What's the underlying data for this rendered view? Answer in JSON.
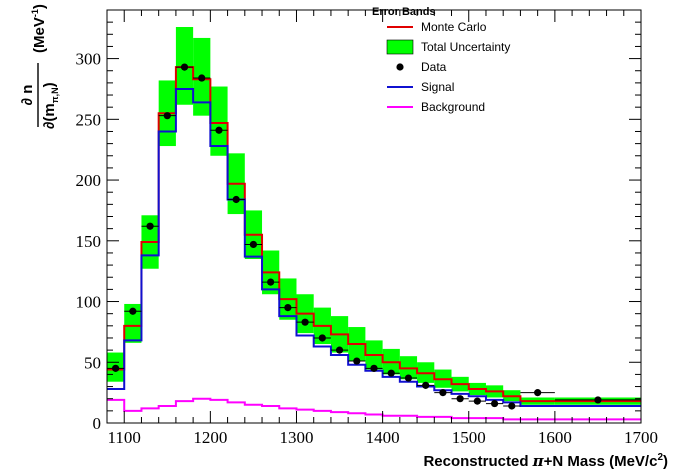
{
  "chart_data": {
    "type": "histogram",
    "xlabel_parts": [
      "Reconstructed ",
      "π",
      "+N Mass (MeV/c",
      "2",
      ")"
    ],
    "ylabel": {
      "numerator": "∂ n",
      "denominator": "∂(m",
      "denominator_sub": "π,N",
      "denominator_close": ")",
      "unit": "(MeV",
      "unit_exp": "-1",
      "unit_close": ")"
    },
    "xlim": [
      1080,
      1700
    ],
    "ylim": [
      0,
      340
    ],
    "x_ticks": [
      1100,
      1200,
      1300,
      1400,
      1500,
      1600,
      1700
    ],
    "y_ticks": [
      0,
      50,
      100,
      150,
      200,
      250,
      300
    ],
    "bin_edges": [
      1080,
      1100,
      1120,
      1140,
      1160,
      1180,
      1200,
      1220,
      1240,
      1260,
      1280,
      1300,
      1320,
      1340,
      1360,
      1380,
      1400,
      1420,
      1440,
      1460,
      1480,
      1500,
      1520,
      1540,
      1560,
      1600,
      1700
    ],
    "legend": {
      "title": "Error Bands",
      "position": "top-right",
      "entries": [
        "Monte Carlo",
        "Total Uncertainty",
        "Data",
        "Signal",
        "Background"
      ]
    },
    "series": [
      {
        "name": "Monte Carlo",
        "kind": "step",
        "color": "#e00000",
        "values": [
          44,
          80,
          149,
          255,
          293,
          283,
          247,
          197,
          155,
          124,
          102,
          90,
          80,
          73,
          65,
          56,
          50,
          45,
          41,
          36,
          32,
          28,
          26,
          22,
          18,
          18
        ]
      },
      {
        "name": "Total Uncertainty",
        "kind": "band",
        "color": "#00ff00",
        "lower": [
          34,
          66,
          127,
          228,
          262,
          253,
          220,
          172,
          135,
          106,
          85,
          74,
          65,
          58,
          51,
          44,
          40,
          36,
          33,
          29,
          26,
          23,
          21,
          18,
          15,
          15
        ],
        "upper": [
          58,
          98,
          171,
          282,
          326,
          317,
          277,
          222,
          175,
          142,
          119,
          106,
          95,
          88,
          79,
          68,
          61,
          55,
          50,
          44,
          38,
          33,
          31,
          27,
          21,
          21
        ]
      },
      {
        "name": "Data",
        "kind": "points",
        "color": "#000000",
        "x": [
          1090,
          1110,
          1130,
          1150,
          1170,
          1190,
          1210,
          1230,
          1250,
          1270,
          1290,
          1310,
          1330,
          1350,
          1370,
          1390,
          1410,
          1430,
          1450,
          1470,
          1490,
          1510,
          1530,
          1550,
          1580,
          1650
        ],
        "values": [
          45,
          92,
          162,
          253,
          293,
          284,
          241,
          184,
          147,
          116,
          95,
          83,
          70,
          60,
          51,
          45,
          41,
          37,
          31,
          25,
          20,
          18,
          16,
          14,
          25,
          19
        ]
      },
      {
        "name": "Signal",
        "kind": "step",
        "color": "#1010d0",
        "values": [
          28,
          68,
          138,
          240,
          275,
          264,
          228,
          184,
          137,
          110,
          88,
          72,
          63,
          56,
          48,
          43,
          38,
          34,
          30,
          27,
          24,
          22,
          19,
          17,
          14,
          14
        ]
      },
      {
        "name": "Background",
        "kind": "step",
        "color": "#ff00ff",
        "values": [
          19,
          10,
          12,
          14,
          18,
          20,
          19,
          17,
          15,
          14,
          12,
          11,
          10,
          9,
          8,
          7,
          6,
          6,
          5,
          5,
          4,
          4,
          4,
          3,
          3,
          3
        ]
      }
    ]
  }
}
